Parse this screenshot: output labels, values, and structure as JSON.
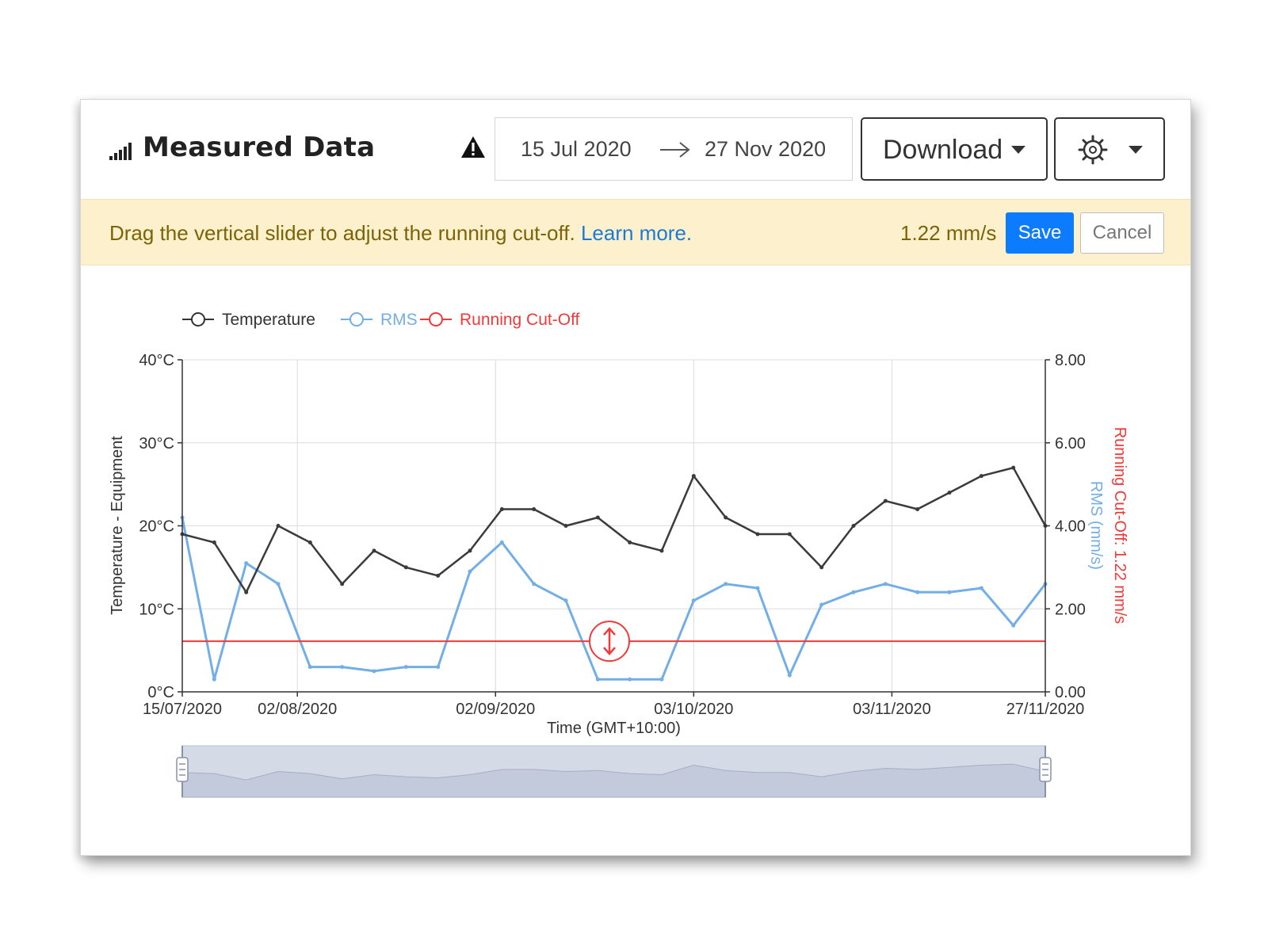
{
  "header": {
    "title": "Measured Data",
    "date_from": "15 Jul 2020",
    "date_to": "27 Nov 2020",
    "download_label": "Download"
  },
  "banner": {
    "message": "Drag the vertical slider to adjust the running cut-off.",
    "link": "Learn more.",
    "value": "1.22 mm/s",
    "save_label": "Save",
    "cancel_label": "Cancel"
  },
  "colors": {
    "temperature": "#3b3b3b",
    "rms": "#74aee6",
    "cutoff": "#f03a3a",
    "accent": "#0d7bfd",
    "banner_bg": "#fcf1cc"
  },
  "chart_data": {
    "type": "line",
    "legend": [
      "Temperature",
      "RMS",
      "Running Cut-Off"
    ],
    "legend_position": "top-left",
    "xlabel": "Time (GMT+10:00)",
    "ylabel_left": "Temperature - Equipment",
    "ylabel_right_1": "RMS (mm/s)",
    "ylabel_right_2": "Running Cut-Off: 1.22 mm/s",
    "x_ticks": [
      "15/07/2020",
      "02/08/2020",
      "02/09/2020",
      "03/10/2020",
      "03/11/2020",
      "27/11/2020"
    ],
    "y_left_ticks": [
      "0°C",
      "10°C",
      "20°C",
      "30°C",
      "40°C"
    ],
    "y_right_ticks": [
      "0.00",
      "2.00",
      "4.00",
      "6.00",
      "8.00"
    ],
    "ylim_left": [
      0,
      40
    ],
    "ylim_right": [
      0,
      8
    ],
    "grid": true,
    "cutoff_value": 1.22,
    "series": [
      {
        "name": "Temperature",
        "axis": "left",
        "x": [
          "15/07/2020",
          "20/07/2020",
          "25/07/2020",
          "30/07/2020",
          "04/08/2020",
          "09/08/2020",
          "14/08/2020",
          "19/08/2020",
          "24/08/2020",
          "29/08/2020",
          "03/09/2020",
          "08/09/2020",
          "13/09/2020",
          "18/09/2020",
          "23/09/2020",
          "28/09/2020",
          "03/10/2020",
          "08/10/2020",
          "13/10/2020",
          "18/10/2020",
          "23/10/2020",
          "28/10/2020",
          "02/11/2020",
          "07/11/2020",
          "12/11/2020",
          "17/11/2020",
          "22/11/2020",
          "27/11/2020"
        ],
        "values": [
          19,
          18,
          12,
          20,
          18,
          13,
          17,
          15,
          14,
          17,
          22,
          22,
          20,
          21,
          18,
          17,
          26,
          21,
          19,
          19,
          15,
          20,
          23,
          22,
          24,
          26,
          27,
          20
        ]
      },
      {
        "name": "RMS",
        "axis": "right",
        "x": [
          "15/07/2020",
          "20/07/2020",
          "25/07/2020",
          "30/07/2020",
          "04/08/2020",
          "09/08/2020",
          "14/08/2020",
          "19/08/2020",
          "24/08/2020",
          "29/08/2020",
          "03/09/2020",
          "08/09/2020",
          "13/09/2020",
          "18/09/2020",
          "23/09/2020",
          "28/09/2020",
          "03/10/2020",
          "08/10/2020",
          "13/10/2020",
          "18/10/2020",
          "23/10/2020",
          "28/10/2020",
          "02/11/2020",
          "07/11/2020",
          "12/11/2020",
          "17/11/2020",
          "22/11/2020",
          "27/11/2020"
        ],
        "values": [
          4.2,
          0.3,
          3.1,
          2.6,
          0.6,
          0.6,
          0.5,
          0.6,
          0.6,
          2.9,
          3.6,
          2.6,
          2.2,
          0.3,
          0.3,
          0.3,
          2.2,
          2.6,
          2.5,
          0.4,
          2.1,
          2.4,
          2.6,
          2.4,
          2.4,
          2.5,
          1.6,
          2.6
        ]
      }
    ]
  }
}
